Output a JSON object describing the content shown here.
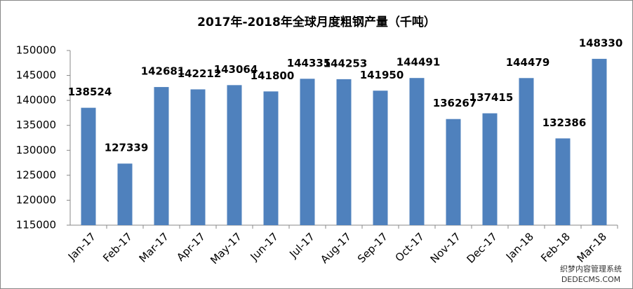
{
  "chart_data": {
    "type": "bar",
    "title": "2017年-2018年全球月度粗钢产量（千吨）",
    "categories": [
      "Jan-17",
      "Feb-17",
      "Mar-17",
      "Apr-17",
      "May-17",
      "Jun-17",
      "Jul-17",
      "Aug-17",
      "Sep-17",
      "Oct-17",
      "Nov-17",
      "Dec-17",
      "Jan-18",
      "Feb-18",
      "Mar-18"
    ],
    "values": [
      138524,
      127339,
      142681,
      142212,
      143064,
      141800,
      144335,
      144253,
      141950,
      144491,
      136267,
      137415,
      144479,
      132386,
      148330
    ],
    "color": "#4f81bd",
    "ylim": [
      115000,
      150000
    ],
    "yticks": [
      115000,
      120000,
      125000,
      130000,
      135000,
      140000,
      145000,
      150000
    ],
    "grid": false
  },
  "watermark": {
    "line1": "织梦内容管理系统",
    "line2": "DEDECMS.COM"
  }
}
